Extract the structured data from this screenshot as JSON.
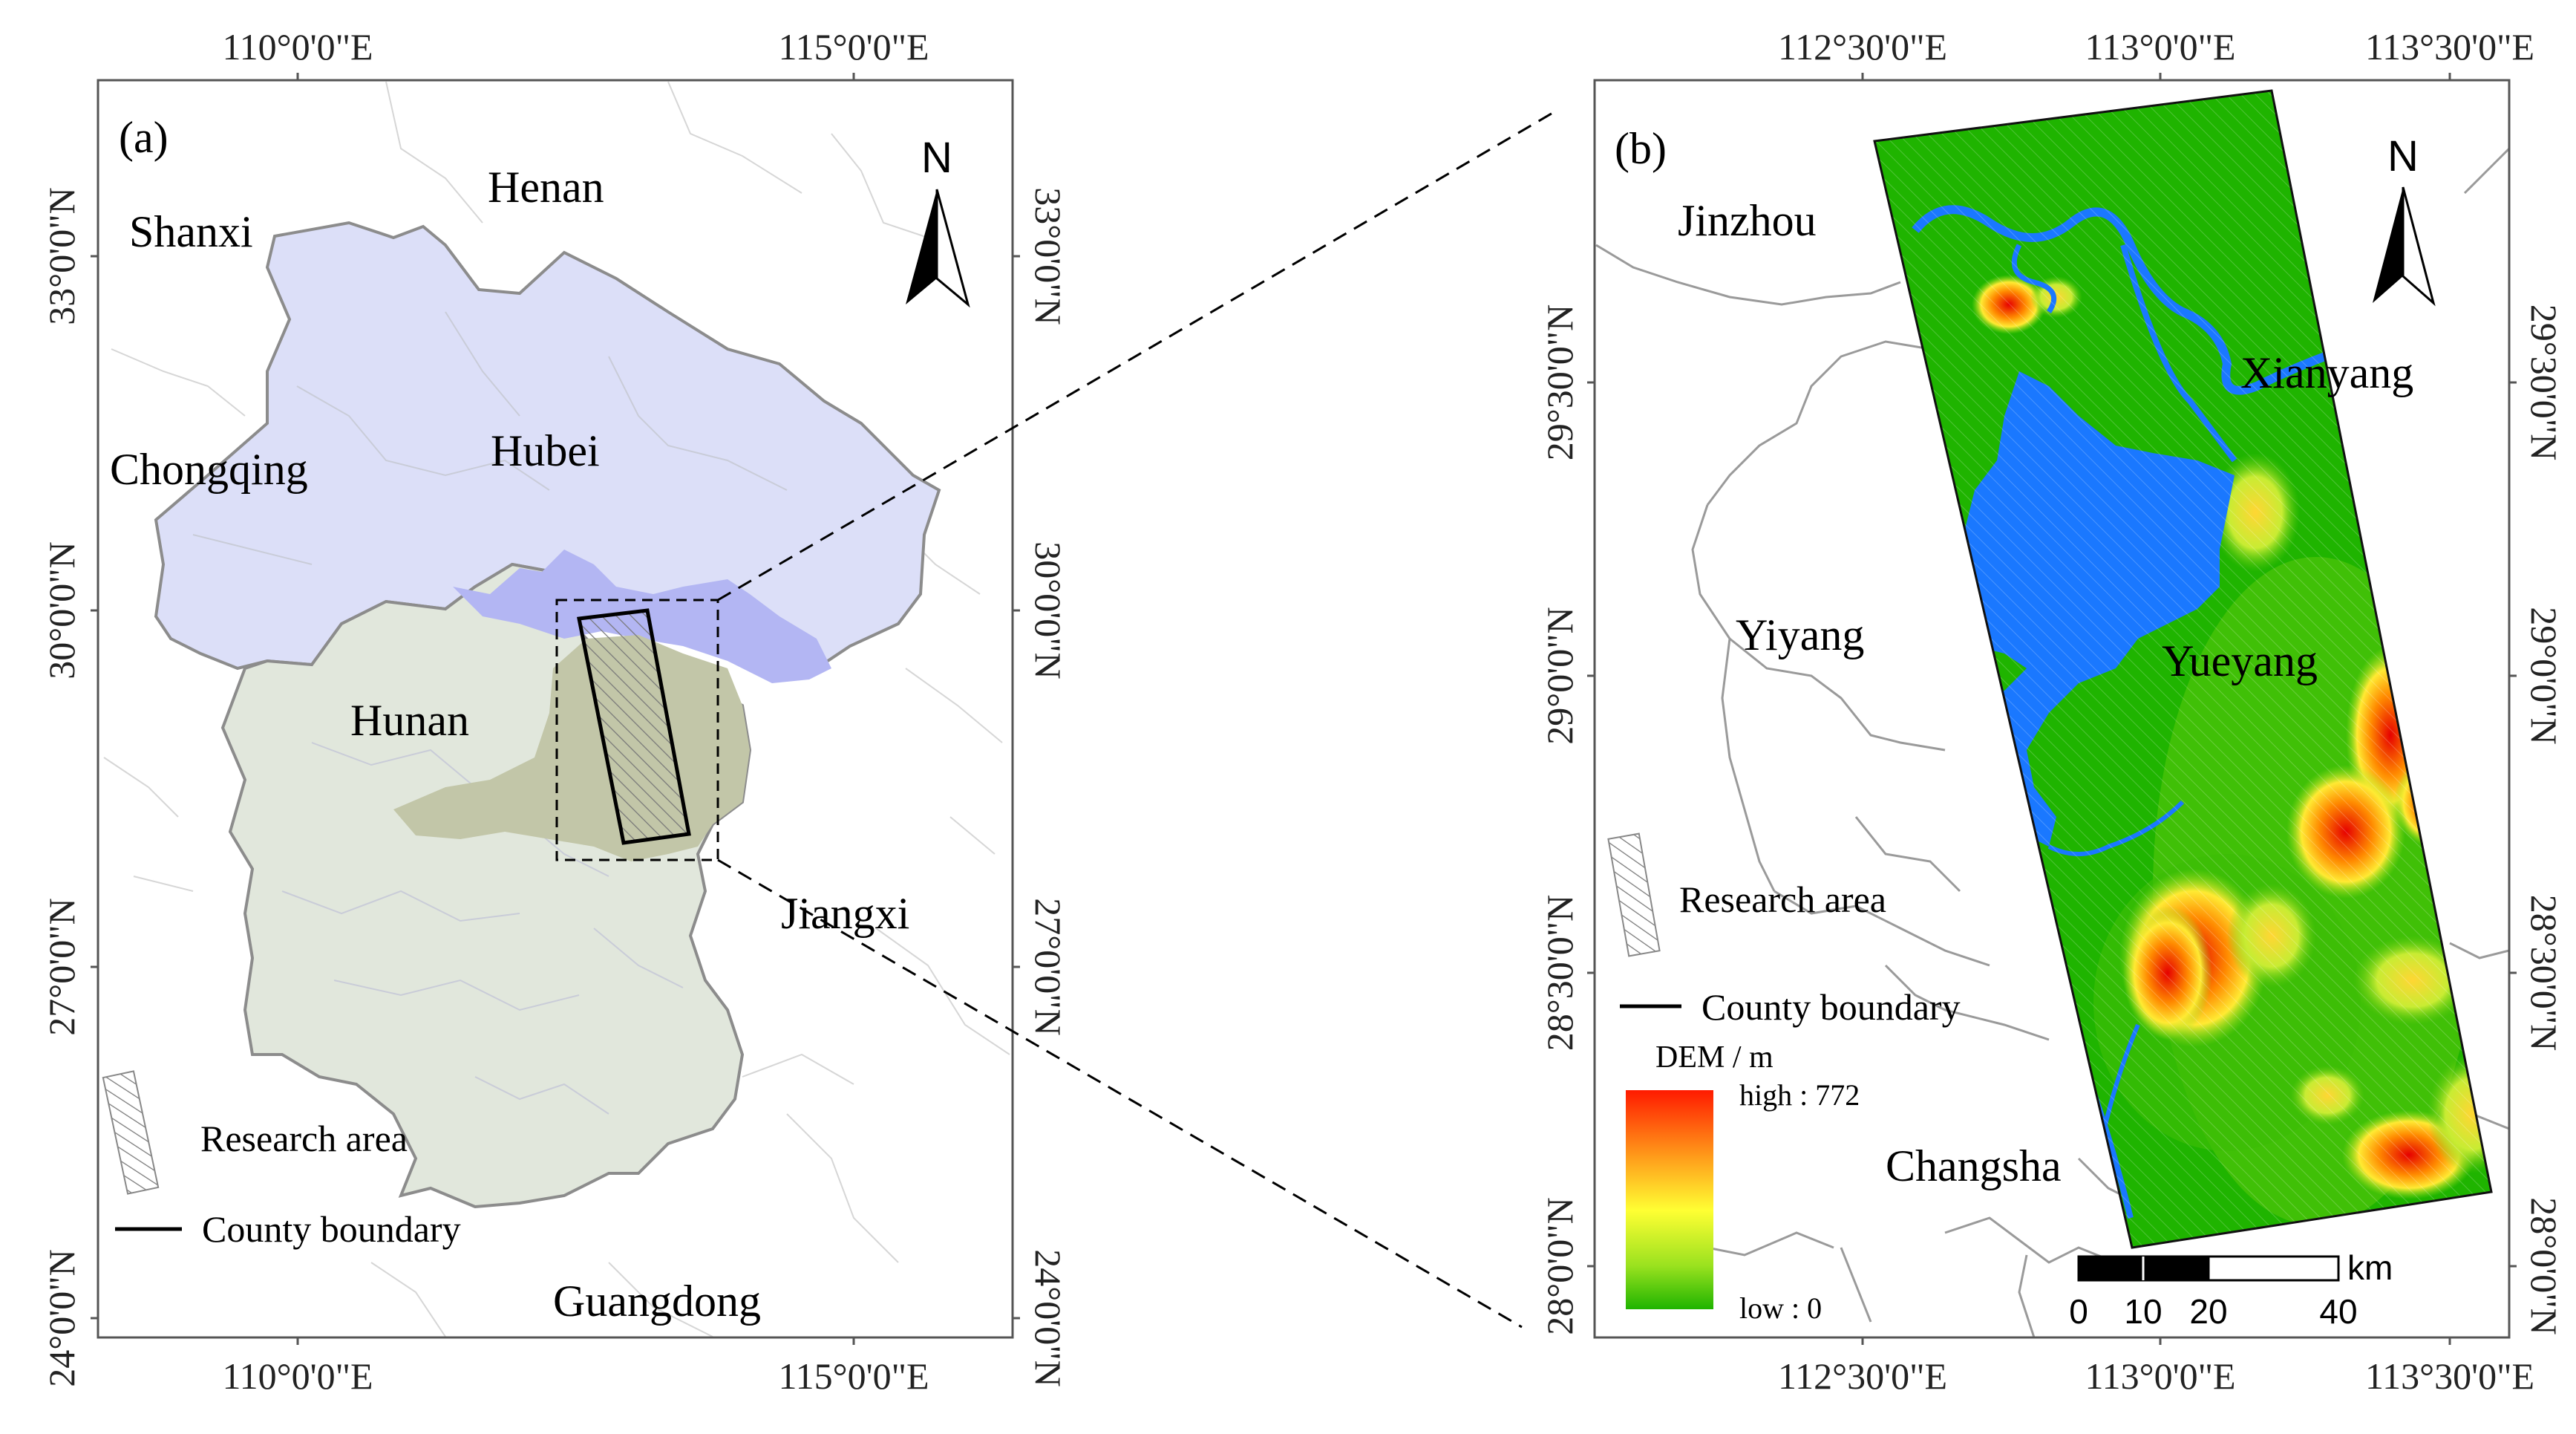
{
  "panel_a": {
    "label": "(a)",
    "top_lon_labels": [
      "110°0'0\"E",
      "115°0'0\"E"
    ],
    "bottom_lon_labels": [
      "110°0'0\"E",
      "115°0'0\"E"
    ],
    "left_lat_labels": [
      "33°0'0\"N",
      "30°0'0\"N",
      "27°0'0\"N",
      "24°0'0\"N"
    ],
    "right_lat_labels": [
      "33°0'0\"N",
      "30°0'0\"N",
      "27°0'0\"N",
      "24°0'0\"N"
    ],
    "north": "N",
    "places": {
      "henan": "Henan",
      "shanxi": "Shanxi",
      "chongqing": "Chongqing",
      "hubei": "Hubei",
      "hunan": "Hunan",
      "jiangxi": "Jiangxi",
      "guangdong": "Guangdong"
    },
    "legend": {
      "research_area": "Research area",
      "county_boundary": "County boundary"
    },
    "colors": {
      "hubei_fill": "#dcdff8",
      "hunan_fill": "#e1e7dc",
      "yueyang_fill": "#b3b6f3",
      "province_border": "#8c8c8c"
    }
  },
  "panel_b": {
    "label": "(b)",
    "top_lon_labels": [
      "112°30'0\"E",
      "113°0'0\"E",
      "113°30'0\"E"
    ],
    "bottom_lon_labels": [
      "112°30'0\"E",
      "113°0'0\"E",
      "113°30'0\"E"
    ],
    "left_lat_labels": [
      "29°30'0\"N",
      "29°0'0\"N",
      "28°30'0\"N",
      "28°0'0\"N"
    ],
    "right_lat_labels": [
      "29°30'0\"N",
      "29°0'0\"N",
      "28°30'0\"N",
      "28°0'0\"N"
    ],
    "north": "N",
    "places": {
      "jinzhou": "Jinzhou",
      "xianyang": "Xianyang",
      "yiyang": "Yiyang",
      "yueyang": "Yueyang",
      "changsha": "Changsha"
    },
    "legend": {
      "research_area": "Research area",
      "county_boundary": "County boundary",
      "dem_title": "DEM / m",
      "dem_high": "high : 772",
      "dem_low": "low : 0"
    },
    "scale_bar": {
      "unit": "km",
      "ticks": [
        "0",
        "10",
        "20",
        "40"
      ]
    },
    "colors": {
      "dem_low": "#1fb400",
      "dem_mid": "#ffff33",
      "dem_high": "#ff1a00",
      "water": "#1a78ff"
    }
  }
}
